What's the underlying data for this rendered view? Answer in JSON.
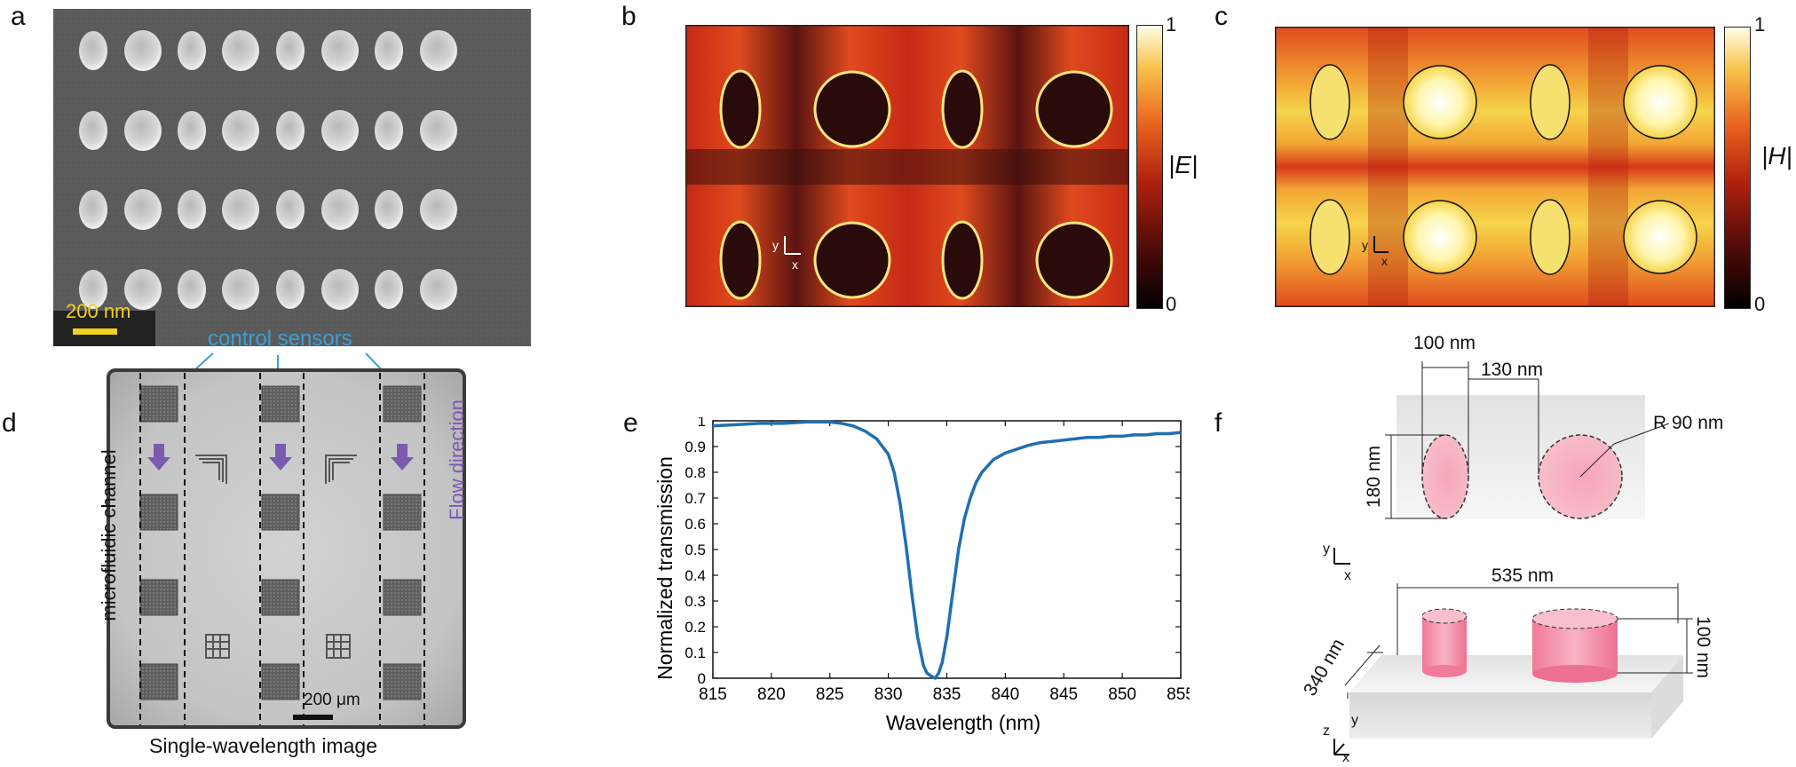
{
  "panels": {
    "a": {
      "letter": "a",
      "scale_label": "200 nm",
      "colors": {
        "scale": "#f2d21b"
      }
    },
    "b": {
      "letter": "b",
      "colorbar_label": "|E|",
      "colorbar_max": "1",
      "colorbar_min": "0",
      "axis_x": "x",
      "axis_y": "y"
    },
    "c": {
      "letter": "c",
      "colorbar_label": "|H|",
      "colorbar_max": "1",
      "colorbar_min": "0",
      "axis_x": "x",
      "axis_y": "y"
    },
    "d": {
      "letter": "d",
      "control_sensors": "control sensors",
      "channel_label": "microfluidic channel",
      "flow_label": "Flow direction",
      "scale_label": "200 μm",
      "caption": "Single-wavelength image",
      "colors": {
        "control": "#3a9fd6",
        "flow": "#7c5ab0"
      }
    },
    "e": {
      "letter": "e"
    },
    "f": {
      "letter": "f",
      "dim_100": "100 nm",
      "dim_130": "130 nm",
      "dim_180": "180 nm",
      "dim_r90": "R 90 nm",
      "dim_535": "535 nm",
      "dim_340": "340 nm",
      "dim_100h": "100 nm",
      "axis_x": "x",
      "axis_y": "y",
      "axis_z": "z",
      "colors": {
        "pillar": "#f4a0b4"
      }
    }
  },
  "chart_data": {
    "type": "line",
    "xlabel": "Wavelength (nm)",
    "ylabel": "Normalized transmission",
    "xlim": [
      815,
      855
    ],
    "ylim": [
      0,
      1
    ],
    "xticks": [
      815,
      820,
      825,
      830,
      835,
      840,
      845,
      850,
      855
    ],
    "yticks": [
      0,
      0.1,
      0.2,
      0.3,
      0.4,
      0.5,
      0.6,
      0.7,
      0.8,
      0.9,
      1
    ],
    "ytick_labels": [
      "0",
      "0.1",
      "0.2",
      "0.3",
      "0.4",
      "0.5",
      "0.6",
      "0.7",
      "0.8",
      "0.9",
      "1"
    ],
    "series": [
      {
        "color": "#1f6fb2",
        "x": [
          815,
          817,
          819,
          821,
          823,
          825,
          826,
          827,
          828,
          829,
          830,
          830.5,
          831,
          831.5,
          832,
          832.5,
          833,
          833.3,
          833.6,
          834,
          834.3,
          834.6,
          835,
          835.5,
          836,
          836.5,
          837,
          837.5,
          838,
          839,
          840,
          841,
          842,
          843,
          844,
          845,
          846,
          847,
          848,
          849,
          850,
          851,
          852,
          853,
          854,
          855
        ],
        "y": [
          0.98,
          0.985,
          0.99,
          0.99,
          0.995,
          0.995,
          0.99,
          0.98,
          0.96,
          0.93,
          0.87,
          0.8,
          0.68,
          0.52,
          0.33,
          0.16,
          0.05,
          0.02,
          0.01,
          0.0,
          0.02,
          0.06,
          0.16,
          0.33,
          0.5,
          0.62,
          0.7,
          0.76,
          0.8,
          0.85,
          0.875,
          0.89,
          0.905,
          0.915,
          0.92,
          0.925,
          0.93,
          0.935,
          0.935,
          0.94,
          0.94,
          0.945,
          0.945,
          0.95,
          0.95,
          0.955
        ]
      }
    ]
  }
}
